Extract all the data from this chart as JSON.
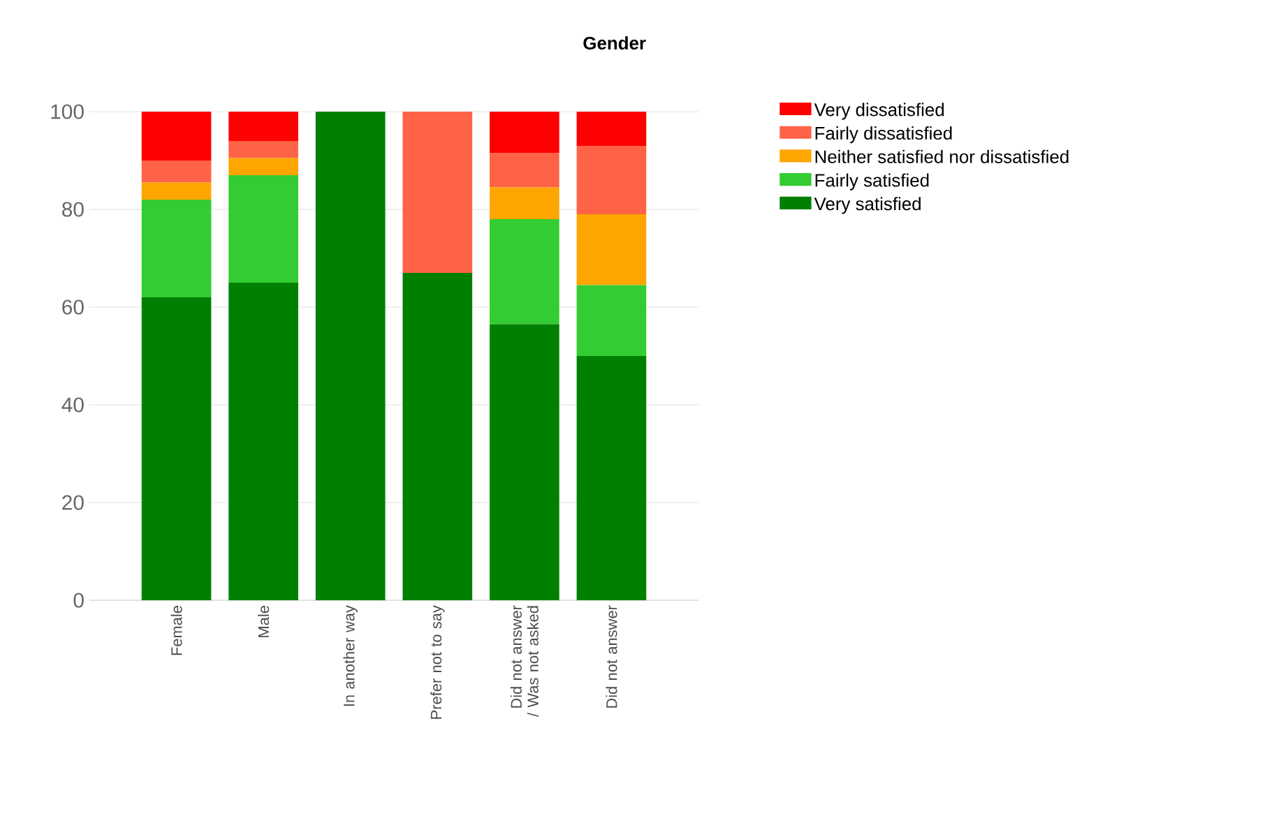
{
  "chart_data": {
    "type": "bar",
    "title": "Gender",
    "stacked": true,
    "categories": [
      "Female",
      "Male",
      "In another way",
      "Prefer not to say",
      "Did not answer / Was not asked",
      "Did not answer"
    ],
    "series": [
      {
        "name": "Very satisfied",
        "color": "#008000",
        "values": [
          62,
          65,
          100,
          67,
          56.5,
          50
        ]
      },
      {
        "name": "Fairly satisfied",
        "color": "#33cc33",
        "values": [
          20,
          22,
          0,
          0,
          21.5,
          14.5
        ]
      },
      {
        "name": "Neither satisfied nor dissatisfied",
        "color": "#ffa500",
        "values": [
          3.5,
          3.5,
          0,
          0,
          6.5,
          14.5
        ]
      },
      {
        "name": "Fairly dissatisfied",
        "color": "#ff6347",
        "values": [
          4.5,
          3.5,
          0,
          33,
          7,
          14
        ]
      },
      {
        "name": "Very dissatisfied",
        "color": "#ff0000",
        "values": [
          10,
          6,
          0,
          0,
          8.5,
          7
        ]
      }
    ],
    "ylim": [
      0,
      100
    ],
    "yticks": [
      0,
      20,
      40,
      60,
      80,
      100
    ],
    "grid": "y",
    "legend": "top right"
  }
}
